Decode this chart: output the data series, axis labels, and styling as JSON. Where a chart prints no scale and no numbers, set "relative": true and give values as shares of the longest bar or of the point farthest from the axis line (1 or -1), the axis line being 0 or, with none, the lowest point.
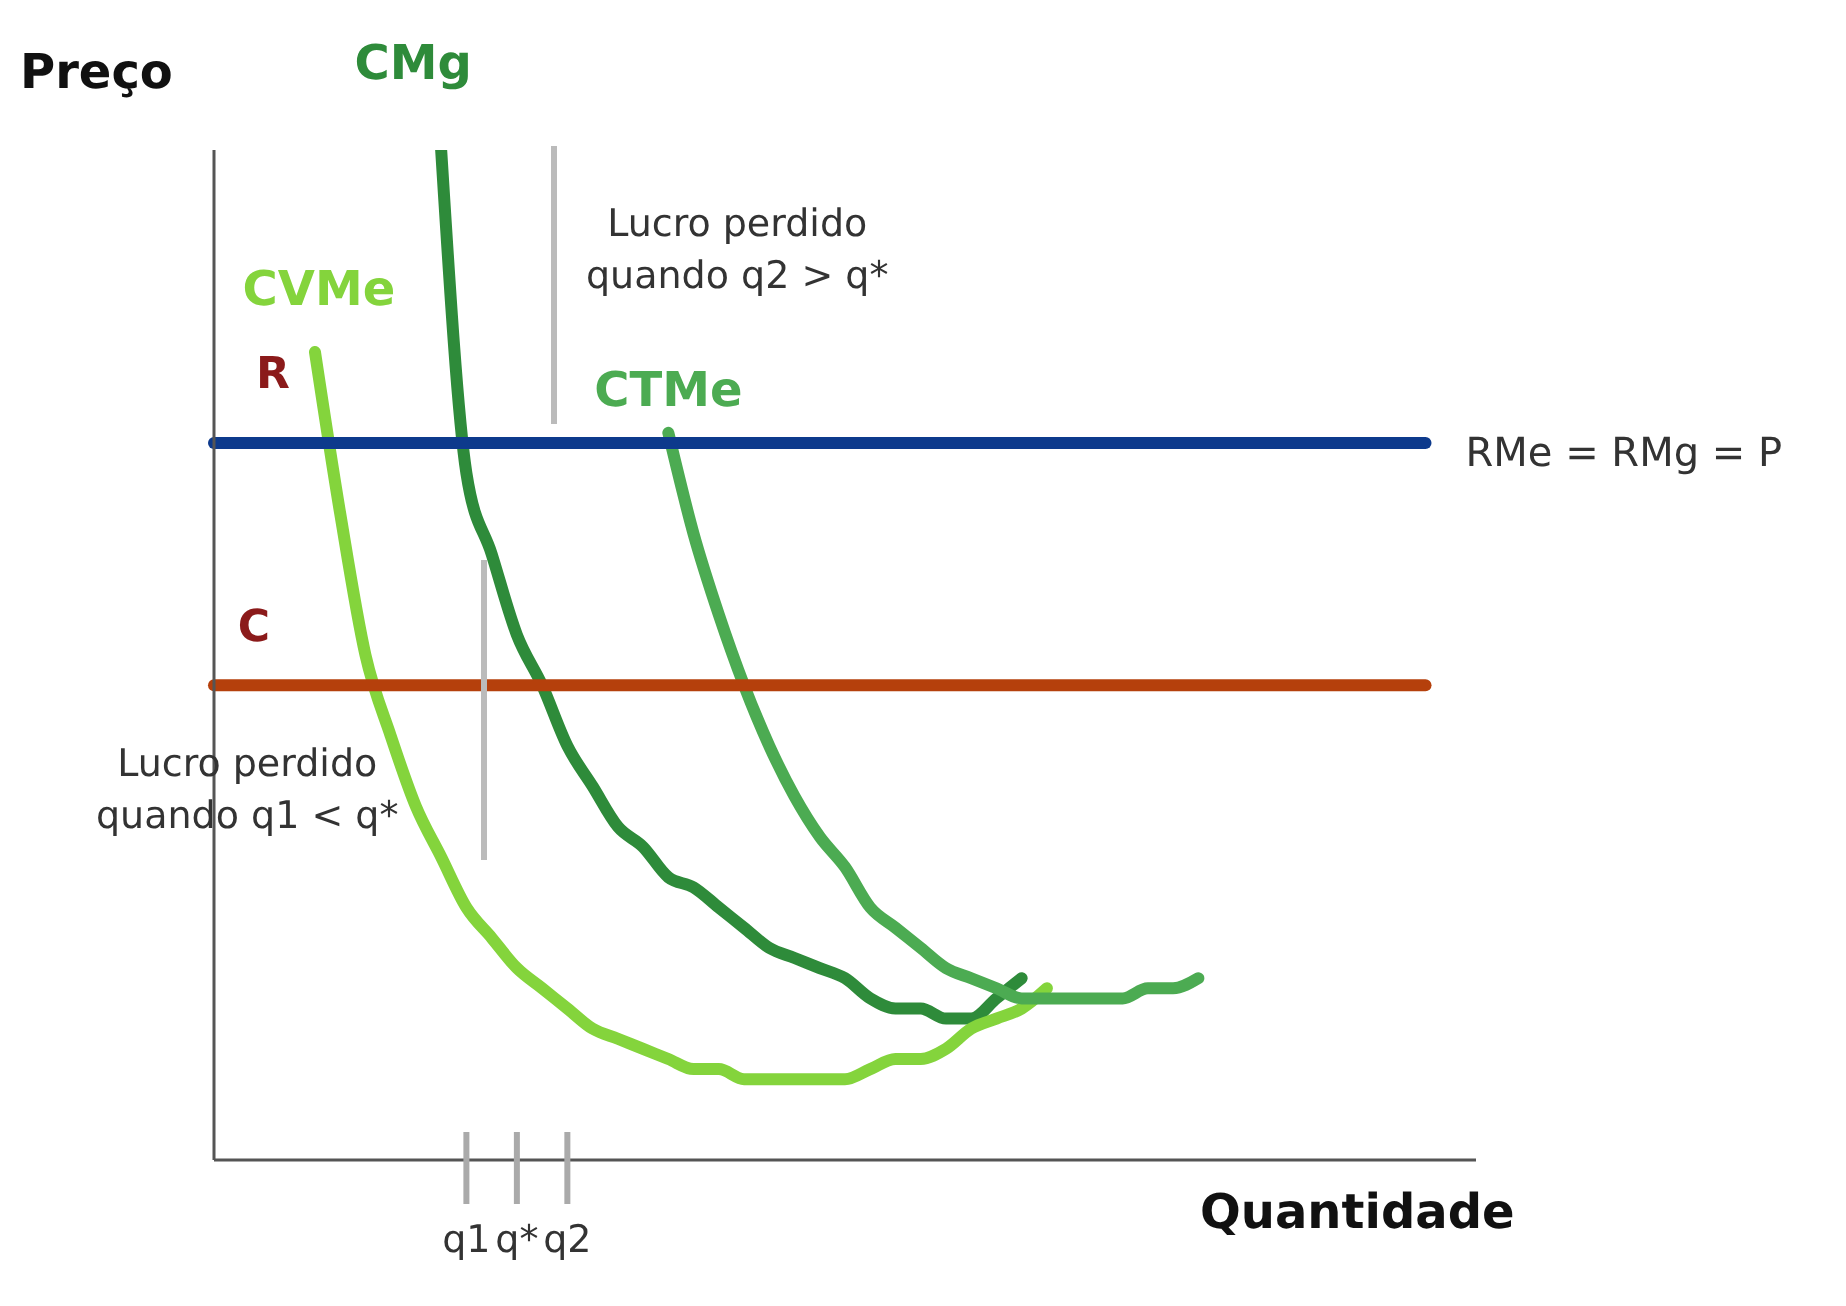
{
  "chart_data": {
    "type": "line",
    "relative": true,
    "ylabel": "Preço",
    "xlabel": "Quantidade",
    "legend": false,
    "grid": false,
    "marker": "none",
    "categories": [
      null,
      null,
      null,
      null,
      null,
      null,
      null,
      null,
      null,
      null,
      "q1",
      null,
      "q*",
      null,
      "q2",
      null,
      null,
      null,
      null,
      null,
      null,
      null,
      null,
      null,
      null,
      null,
      null,
      null,
      null,
      null,
      null,
      null,
      null,
      null,
      null,
      null,
      null,
      null,
      null,
      null,
      null,
      null,
      null,
      null,
      null,
      null,
      null,
      null,
      null,
      null,
      null
    ],
    "series": [
      {
        "name": "CMg",
        "color": "#2e8b3a",
        "values": [
          null,
          null,
          null,
          null,
          null,
          null,
          null,
          null,
          null,
          1.0,
          0.68,
          0.6,
          0.52,
          0.47,
          0.41,
          0.37,
          0.33,
          0.31,
          0.28,
          0.27,
          0.25,
          0.23,
          0.21,
          0.2,
          0.19,
          0.18,
          0.16,
          0.15,
          0.15,
          0.14,
          0.14,
          0.16,
          0.18,
          null,
          null,
          null,
          null,
          null,
          null,
          null,
          null,
          null,
          null,
          null,
          null,
          null,
          null,
          null,
          null,
          null,
          null
        ]
      },
      {
        "name": "CVMe",
        "color": "#84d43c",
        "values": [
          null,
          null,
          null,
          null,
          0.8,
          0.64,
          0.5,
          0.42,
          0.35,
          0.3,
          0.25,
          0.22,
          0.19,
          0.17,
          0.15,
          0.13,
          0.12,
          0.11,
          0.1,
          0.09,
          0.09,
          0.08,
          0.08,
          0.08,
          0.08,
          0.08,
          0.09,
          0.1,
          0.1,
          0.11,
          0.13,
          0.14,
          0.15,
          0.17,
          null,
          null,
          null,
          null,
          null,
          null,
          null,
          null,
          null,
          null,
          null,
          null,
          null,
          null,
          null,
          null,
          null
        ]
      },
      {
        "name": "CTMe",
        "color": "#4cab52",
        "values": [
          null,
          null,
          null,
          null,
          null,
          null,
          null,
          null,
          null,
          null,
          null,
          null,
          null,
          null,
          null,
          null,
          null,
          null,
          0.72,
          0.62,
          0.54,
          0.47,
          0.41,
          0.36,
          0.32,
          0.29,
          0.25,
          0.23,
          0.21,
          0.19,
          0.18,
          0.17,
          0.16,
          0.16,
          0.16,
          0.16,
          0.16,
          0.17,
          0.17,
          0.18,
          null,
          null,
          null,
          null,
          null,
          null,
          null,
          null,
          null,
          null,
          null
        ]
      },
      {
        "name": "RMe = RMg = P",
        "color": "#0d3a8c",
        "values": [
          0.71,
          0.71,
          0.71,
          0.71,
          0.71,
          0.71,
          0.71,
          0.71,
          0.71,
          0.71,
          0.71,
          0.71,
          0.71,
          0.71,
          0.71,
          0.71,
          0.71,
          0.71,
          0.71,
          0.71,
          0.71,
          0.71,
          0.71,
          0.71,
          0.71,
          0.71,
          0.71,
          0.71,
          0.71,
          0.71,
          0.71,
          0.71,
          0.71,
          0.71,
          0.71,
          0.71,
          0.71,
          0.71,
          0.71,
          0.71,
          0.71,
          0.71,
          0.71,
          0.71,
          0.71,
          0.71,
          0.71,
          0.71,
          0.71,
          null,
          null
        ]
      },
      {
        "name": "C",
        "color": "#b5400c",
        "values": [
          0.47,
          0.47,
          0.47,
          0.47,
          0.47,
          0.47,
          0.47,
          0.47,
          0.47,
          0.47,
          0.47,
          0.47,
          0.47,
          0.47,
          0.47,
          0.47,
          0.47,
          0.47,
          0.47,
          0.47,
          0.47,
          0.47,
          0.47,
          0.47,
          0.47,
          0.47,
          0.47,
          0.47,
          0.47,
          0.47,
          0.47,
          0.47,
          0.47,
          0.47,
          0.47,
          0.47,
          0.47,
          0.47,
          0.47,
          0.47,
          0.47,
          0.47,
          0.47,
          0.47,
          0.47,
          0.47,
          0.47,
          0.47,
          0.47,
          null,
          null
        ]
      }
    ],
    "annotations": [
      "R",
      "Lucro perdido\nquando q2 > q*",
      "Lucro perdido\nquando q1 < q*"
    ]
  }
}
